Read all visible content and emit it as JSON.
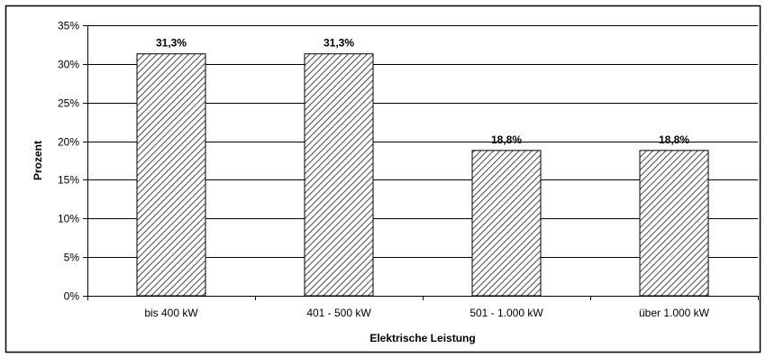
{
  "chart_data": {
    "type": "bar",
    "categories": [
      "bis 400 kW",
      "401 - 500 kW",
      "501 - 1.000 kW",
      "über 1.000 kW"
    ],
    "values": [
      31.3,
      31.3,
      18.8,
      18.8
    ],
    "value_labels": [
      "31,3%",
      "31,3%",
      "18,8%",
      "18,8%"
    ],
    "xlabel": "Elektrische Leistung",
    "ylabel": "Prozent",
    "ylim": [
      0,
      35
    ],
    "yticks": [
      0,
      5,
      10,
      15,
      20,
      25,
      30,
      35
    ],
    "ytick_labels": [
      "0%",
      "5%",
      "10%",
      "15%",
      "20%",
      "25%",
      "30%",
      "35%"
    ],
    "grid": true,
    "bar_fill": "diagonal-hatch",
    "colors": {
      "bar_stroke": "#000000",
      "hatch": "#555555",
      "grid": "#000000",
      "frame": "#000000"
    }
  }
}
